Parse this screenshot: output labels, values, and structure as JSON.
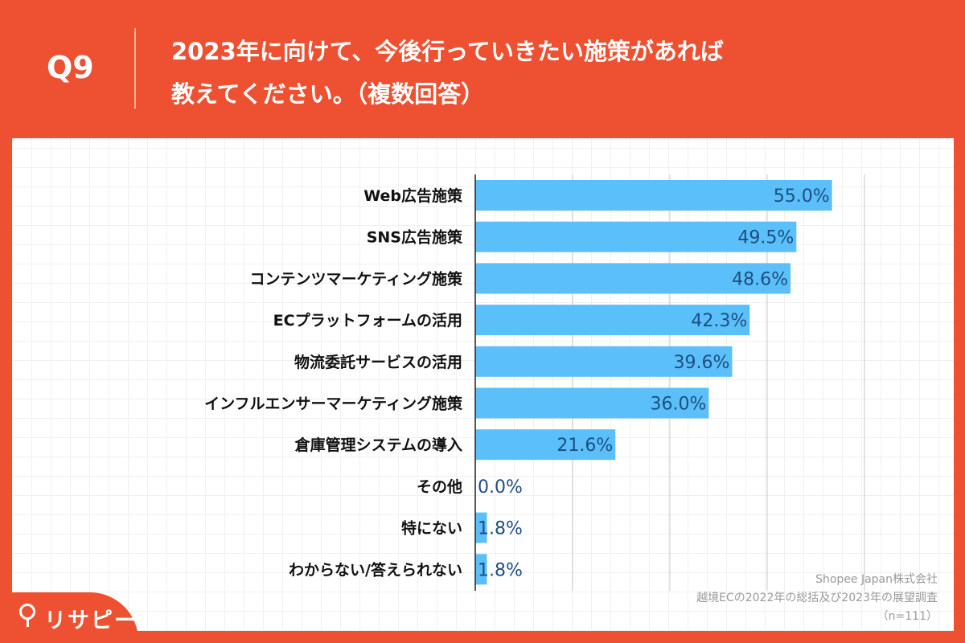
{
  "header": {
    "question": "Q9",
    "title_line1": "2023年に向けて、今後行っていきたい施策があれば",
    "title_line2": "教えてください。（複数回答）"
  },
  "chart_data": {
    "type": "bar",
    "orientation": "horizontal",
    "categories": [
      "Web広告施策",
      "SNS広告施策",
      "コンテンツマーケティング施策",
      "ECプラットフォームの活用",
      "物流委託サービスの活用",
      "インフルエンサーマーケティング施策",
      "倉庫管理システムの導入",
      "その他",
      "特にない",
      "わからない/答えられない"
    ],
    "values": [
      55.0,
      49.5,
      48.6,
      42.3,
      39.6,
      36.0,
      21.6,
      0.0,
      1.8,
      1.8
    ],
    "value_labels": [
      "55.0%",
      "49.5%",
      "48.6%",
      "42.3%",
      "39.6%",
      "36.0%",
      "21.6%",
      "0.0%",
      "1.8%",
      "1.8%"
    ],
    "xlim": [
      0,
      60
    ],
    "grid": true,
    "gridlines": [
      15,
      30,
      45,
      60
    ],
    "bar_color": "#5BBFFA",
    "label_color": "#1C4F80"
  },
  "source": {
    "line1": "Shopee Japan株式会社",
    "line2": "越境ECの2022年の総括及び2023年の展望調査",
    "line3": "（n=111）"
  },
  "logo": {
    "text": "リサピー"
  },
  "colors": {
    "background": "#EE5132",
    "panel": "#FFFFFF"
  }
}
